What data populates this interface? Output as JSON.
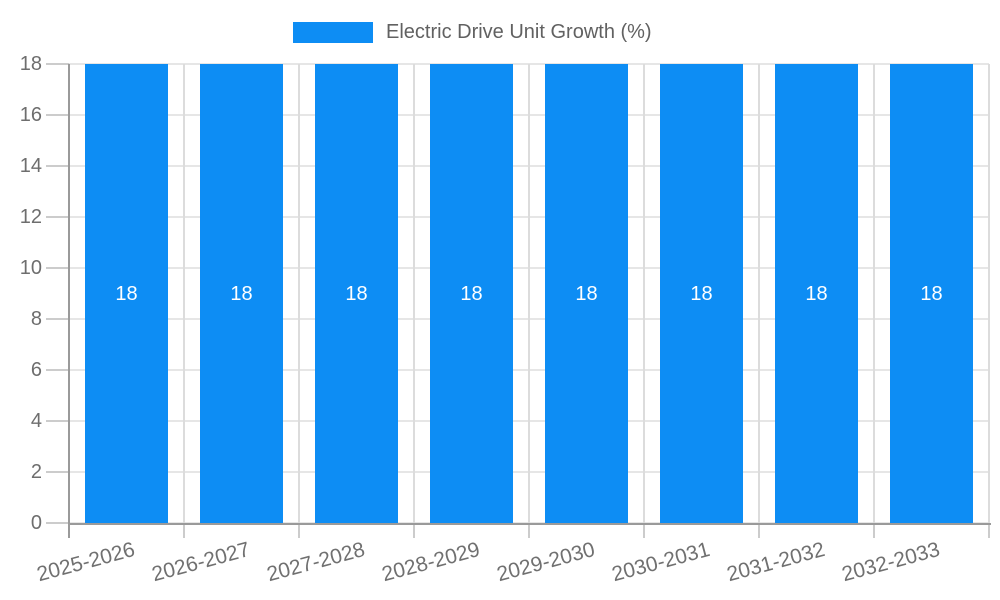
{
  "chart_data": {
    "type": "bar",
    "title": "Electric Drive Unit Growth (%)",
    "legend_entries": [
      "Electric Drive Unit Growth (%)"
    ],
    "legend_position": "top-center",
    "categories": [
      "2025-2026",
      "2026-2027",
      "2027-2028",
      "2028-2029",
      "2029-2030",
      "2030-2031",
      "2031-2032",
      "2032-2033"
    ],
    "values": [
      18,
      18,
      18,
      18,
      18,
      18,
      18,
      18
    ],
    "xlabel": "",
    "ylabel": "",
    "ylim": [
      0,
      18
    ],
    "yticks": [
      0,
      2,
      4,
      6,
      8,
      10,
      12,
      14,
      16,
      18
    ],
    "grid": "on",
    "bar_value_labels_shown": true,
    "x_label_rotation_deg": -15
  },
  "colors": {
    "bar": "#0D8DF4",
    "bar_value_label": "#FFFFFF",
    "axis_line": "#9A9A9A",
    "gridline_horizontal": "#E6E6E6",
    "gridline_vertical": "#DCDCDC",
    "tick_mark": "#CCCCCC",
    "y_tick_label": "#6E6E6E",
    "x_tick_label": "#707070",
    "legend_text": "#616161",
    "background": "#FFFFFF"
  }
}
